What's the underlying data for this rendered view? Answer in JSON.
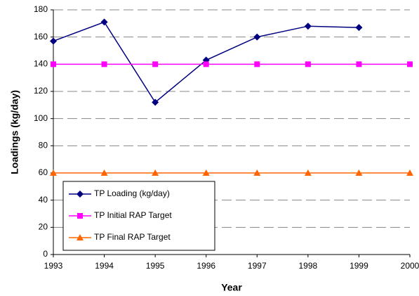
{
  "chart_data": {
    "type": "line",
    "x": [
      1993,
      1994,
      1995,
      1996,
      1997,
      1998,
      1999,
      2000
    ],
    "xlabel": "Year",
    "ylabel": "Loadings (kg/day)",
    "xlim": [
      1993,
      2000
    ],
    "xticks": [
      1993,
      1994,
      1995,
      1996,
      1997,
      1998,
      1999,
      2000
    ],
    "ylim": [
      0,
      180
    ],
    "yticks": [
      0,
      20,
      40,
      60,
      80,
      100,
      120,
      140,
      160,
      180
    ],
    "grid": true,
    "legend": "lower left",
    "series": [
      {
        "name": "TP Loading (kg/day)",
        "color": "#000080",
        "marker": "diamond",
        "values": [
          157,
          171,
          112,
          143,
          160,
          168,
          167,
          null
        ]
      },
      {
        "name": "TP Initial RAP Target",
        "color": "#ff00ff",
        "marker": "square",
        "values": [
          140,
          140,
          140,
          140,
          140,
          140,
          140,
          140
        ]
      },
      {
        "name": "TP Final RAP Target",
        "color": "#ff6600",
        "marker": "triangle",
        "values": [
          60,
          60,
          60,
          60,
          60,
          60,
          60,
          60
        ]
      }
    ]
  }
}
